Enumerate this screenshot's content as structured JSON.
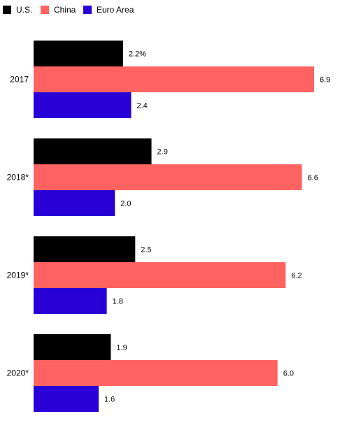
{
  "chart_data": {
    "type": "bar",
    "orientation": "horizontal",
    "categories": [
      "2017",
      "2018*",
      "2019*",
      "2020*"
    ],
    "series": [
      {
        "name": "U.S.",
        "values": [
          2.2,
          2.9,
          2.5,
          1.9
        ],
        "labels": [
          "2.2%",
          "2.9",
          "2.5",
          "1.9"
        ],
        "color": "#000000"
      },
      {
        "name": "China",
        "values": [
          6.9,
          6.6,
          6.2,
          6.0
        ],
        "labels": [
          "6.9",
          "6.6",
          "6.2",
          "6.0"
        ],
        "color": "#ff6361"
      },
      {
        "name": "Euro Area",
        "values": [
          2.4,
          2.0,
          1.8,
          1.6
        ],
        "labels": [
          "2.4",
          "2.0",
          "1.8",
          "1.6"
        ],
        "color": "#2800d7"
      }
    ],
    "xlim": [
      0,
      6.9
    ],
    "grid": false,
    "legend_position": "top-left"
  }
}
